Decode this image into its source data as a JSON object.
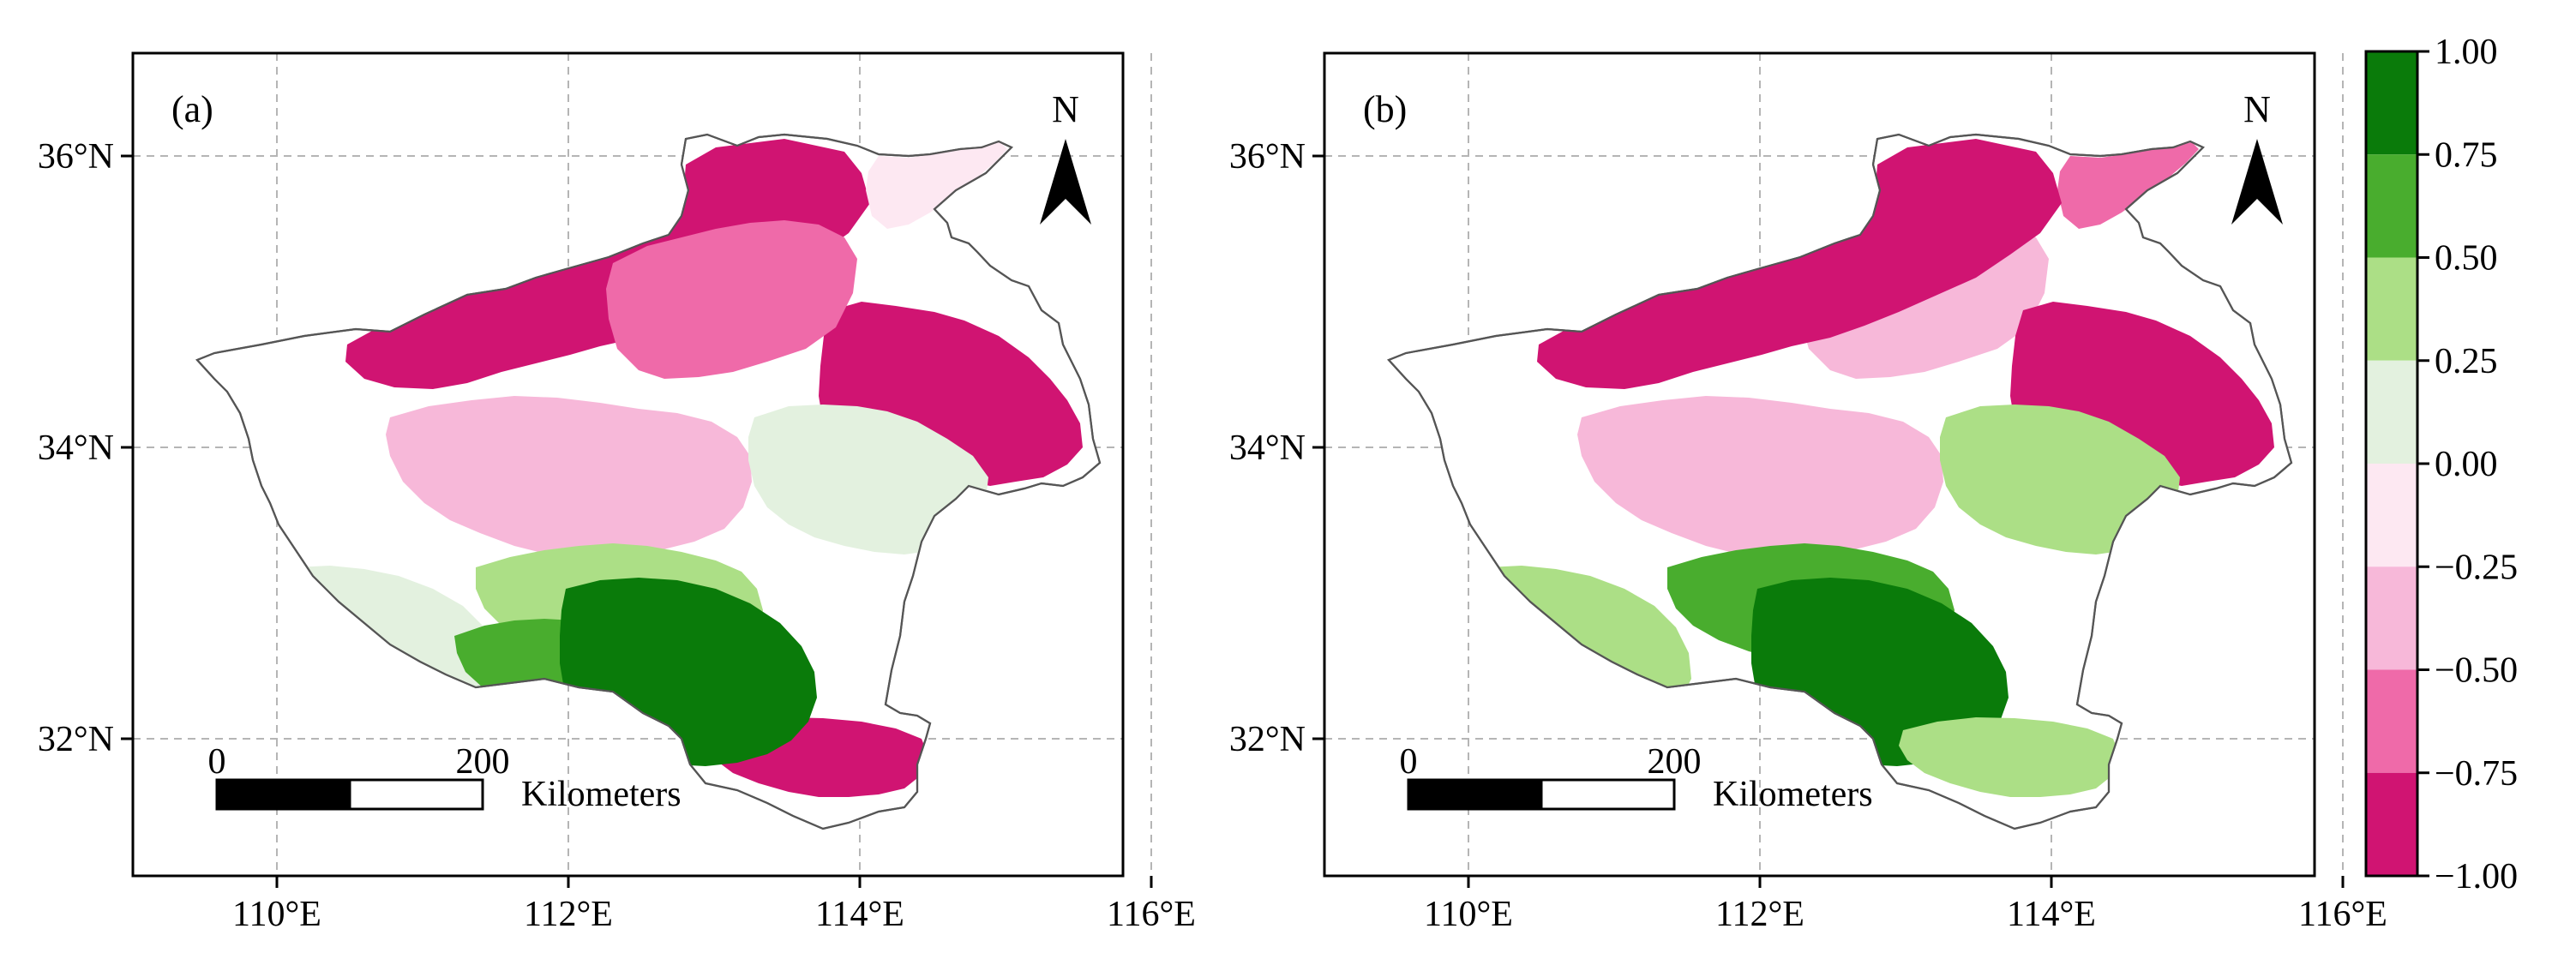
{
  "figure": {
    "panels": [
      {
        "id": "a",
        "label": "(a)",
        "x_ticks": [
          "110°E",
          "112°E",
          "114°E",
          "116°E"
        ],
        "y_ticks": [
          "36°N",
          "34°N",
          "32°N"
        ],
        "scale_bar": {
          "start_label": "0",
          "end_label": "200",
          "unit": "Kilometers"
        },
        "north_arrow": "N",
        "regions": [
          {
            "color": "#d01472",
            "shape": "north-band"
          },
          {
            "color": "#d01472",
            "shape": "east-block"
          },
          {
            "color": "#d01472",
            "shape": "south-strip"
          },
          {
            "color": "#ef6aa9",
            "shape": "north-pink"
          },
          {
            "color": "#f7b8d9",
            "shape": "center"
          },
          {
            "color": "#fde8f2",
            "shape": "northeast-tip"
          },
          {
            "color": "#e3f1df",
            "shape": "east-light"
          },
          {
            "color": "#e3f1df",
            "shape": "southwest-light"
          },
          {
            "color": "#acdf86",
            "shape": "south-mid"
          },
          {
            "color": "#49ad2e",
            "shape": "south-green"
          },
          {
            "color": "#0a7b0a",
            "shape": "south-dark"
          }
        ]
      },
      {
        "id": "b",
        "label": "(b)",
        "x_ticks": [
          "110°E",
          "112°E",
          "114°E",
          "116°E"
        ],
        "y_ticks": [
          "36°N",
          "34°N",
          "32°N"
        ],
        "scale_bar": {
          "start_label": "0",
          "end_label": "200",
          "unit": "Kilometers"
        },
        "north_arrow": "N",
        "regions": [
          {
            "color": "#f7b8d9",
            "shape": "north-pink"
          },
          {
            "color": "#ef6aa9",
            "shape": "northeast-tip"
          },
          {
            "color": "#d01472",
            "shape": "north-band"
          },
          {
            "color": "#f7b8d9",
            "shape": "center"
          },
          {
            "color": "#d01472",
            "shape": "east-block"
          },
          {
            "color": "#acdf86",
            "shape": "east-light"
          },
          {
            "color": "#acdf86",
            "shape": "southwest-light"
          },
          {
            "color": "#49ad2e",
            "shape": "south-mid"
          },
          {
            "color": "#0a7b0a",
            "shape": "south-dark"
          },
          {
            "color": "#acdf86",
            "shape": "south-strip"
          }
        ]
      }
    ],
    "colorbar": {
      "labels": [
        "1.00",
        "0.75",
        "0.50",
        "0.25",
        "0.00",
        "−0.25",
        "−0.50",
        "−0.75",
        "−1.00"
      ],
      "colors": [
        "#0a7b0a",
        "#49ad2e",
        "#acdf86",
        "#e3f1df",
        "#fde8f2",
        "#f7b8d9",
        "#ef6aa9",
        "#d01472"
      ]
    }
  }
}
